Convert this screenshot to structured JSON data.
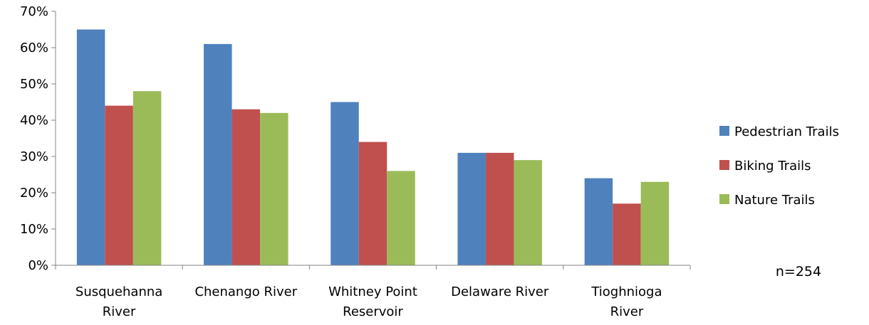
{
  "chart_data": {
    "type": "bar",
    "title": "",
    "xlabel": "",
    "ylabel": "",
    "ylim": [
      0,
      70
    ],
    "ytick_step": 10,
    "y_format": "percent",
    "categories": [
      [
        "Susquehanna",
        "River"
      ],
      [
        "Chenango River"
      ],
      [
        "Whitney Point",
        "Reservoir"
      ],
      [
        "Delaware River"
      ],
      [
        "Tioghnioga",
        "River"
      ]
    ],
    "series": [
      {
        "name": "Pedestrian Trails",
        "color": "#4F81BD",
        "values": [
          65,
          61,
          45,
          31,
          24
        ]
      },
      {
        "name": "Biking Trails",
        "color": "#C0504D",
        "values": [
          44,
          43,
          34,
          31,
          17
        ]
      },
      {
        "name": "Nature Trails",
        "color": "#9BBB59",
        "values": [
          48,
          42,
          26,
          29,
          23
        ]
      }
    ],
    "legend_position": "right",
    "grid": false,
    "annotation": "n=254"
  }
}
